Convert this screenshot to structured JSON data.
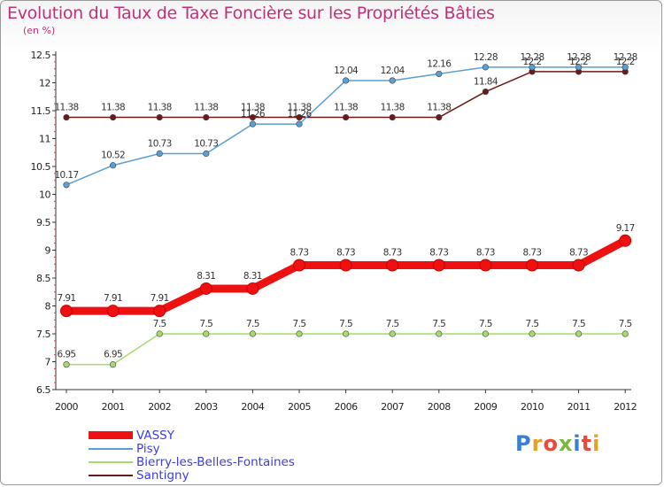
{
  "title": "Evolution du Taux de Taxe Foncière sur les Propriétés Bâties",
  "unit": "(en %)",
  "logo": "Proxiti",
  "chart_data": {
    "type": "line",
    "x": [
      "2000",
      "2001",
      "2002",
      "2003",
      "2004",
      "2005",
      "2006",
      "2007",
      "2008",
      "2009",
      "2010",
      "2011",
      "2012"
    ],
    "ylim": [
      6.5,
      12.5
    ],
    "yticks": [
      "6.5",
      "7",
      "7.5",
      "8",
      "8.5",
      "9",
      "9.5",
      "10",
      "10.5",
      "11",
      "11.5",
      "12",
      "12.5"
    ],
    "grid": false,
    "legend_position": "bottom-left",
    "series": [
      {
        "name": "Santigny",
        "color": "#6b1a1a",
        "values": [
          11.38,
          11.38,
          11.38,
          11.38,
          11.38,
          11.38,
          11.38,
          11.38,
          11.38,
          11.84,
          12.2,
          12.2,
          12.2
        ],
        "labels": [
          "11.38",
          "11.38",
          "11.38",
          "11.38",
          "11.38",
          "11.38",
          "11.38",
          "11.38",
          "11.38",
          "11.84",
          "12.2",
          "12.2",
          "12.2"
        ]
      },
      {
        "name": "Pisy",
        "color": "#5a9fd4",
        "values": [
          10.17,
          10.52,
          10.73,
          10.73,
          11.26,
          11.26,
          12.04,
          12.04,
          12.16,
          12.28,
          12.28,
          12.28,
          12.28
        ],
        "labels": [
          "10.17",
          "10.52",
          "10.73",
          "10.73",
          "11.26",
          "11.26",
          "12.04",
          "12.04",
          "12.16",
          "12.28",
          "12.28",
          "12.28",
          "12.28"
        ]
      },
      {
        "name": "Bierry-les-Belles-Fontaines",
        "color": "#a4dc6c",
        "values": [
          6.95,
          6.95,
          7.5,
          7.5,
          7.5,
          7.5,
          7.5,
          7.5,
          7.5,
          7.5,
          7.5,
          7.5,
          7.5
        ],
        "labels": [
          "6.95",
          "6.95",
          "7.5",
          "7.5",
          "7.5",
          "7.5",
          "7.5",
          "7.5",
          "7.5",
          "7.5",
          "7.5",
          "7.5",
          "7.5"
        ]
      },
      {
        "name": "VASSY",
        "color": "#ee1111",
        "values": [
          7.91,
          7.91,
          7.91,
          8.31,
          8.31,
          8.73,
          8.73,
          8.73,
          8.73,
          8.73,
          8.73,
          8.73,
          9.17
        ],
        "labels": [
          "7.91",
          "7.91",
          "7.91",
          "8.31",
          "8.31",
          "8.73",
          "8.73",
          "8.73",
          "8.73",
          "8.73",
          "8.73",
          "8.73",
          "9.17"
        ]
      }
    ],
    "legend": [
      "VASSY",
      "Pisy",
      "Bierry-les-Belles-Fontaines",
      "Santigny"
    ]
  }
}
